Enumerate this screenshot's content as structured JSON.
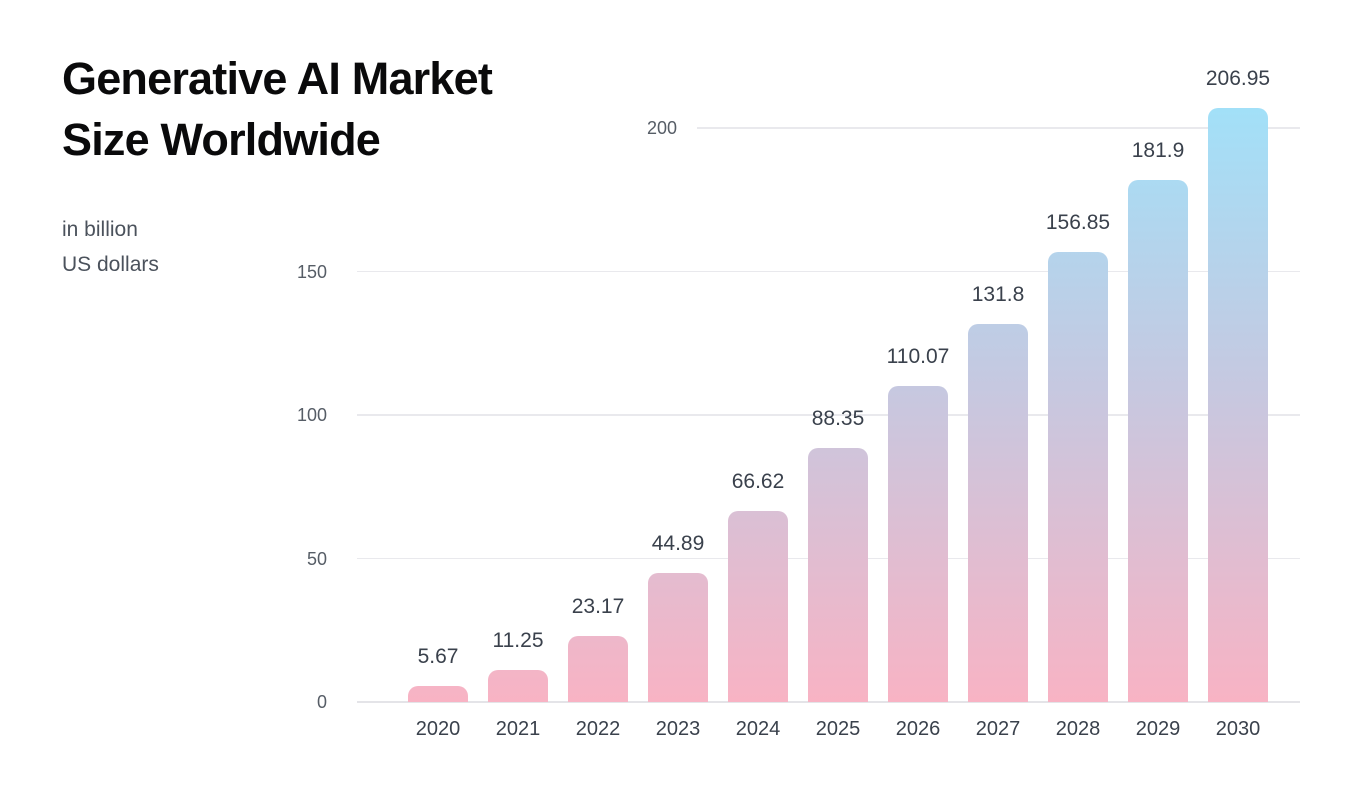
{
  "chart_data": {
    "type": "bar",
    "title": "Generative AI Market\nSize Worldwide",
    "subtitle": "in billion\nUS dollars",
    "xlabel": "",
    "ylabel": "in billion US dollars",
    "categories": [
      "2020",
      "2021",
      "2022",
      "2023",
      "2024",
      "2025",
      "2026",
      "2027",
      "2028",
      "2029",
      "2030"
    ],
    "values": [
      5.67,
      11.25,
      23.17,
      44.89,
      66.62,
      88.35,
      110.07,
      131.8,
      156.85,
      181.9,
      206.95
    ],
    "value_labels": [
      "5.67",
      "11.25",
      "23.17",
      "44.89",
      "66.62",
      "88.35",
      "110.07",
      "131.8",
      "156.85",
      "181.9",
      "206.95"
    ],
    "yticks": [
      0,
      50,
      100,
      150,
      200
    ],
    "ylim": [
      0,
      215
    ],
    "grid": true,
    "legend": false,
    "bar_gradient": {
      "bottom": "#f8b3c4",
      "mid": "#c6c8e0",
      "top": "#a2e0f8"
    },
    "colors": {
      "title_text": "#0a0a0b",
      "subtitle_text": "#4b525c",
      "tick_text": "#565d66",
      "value_text": "#3a414c",
      "gridline": "#e9e9ed",
      "background": "#ffffff"
    }
  }
}
